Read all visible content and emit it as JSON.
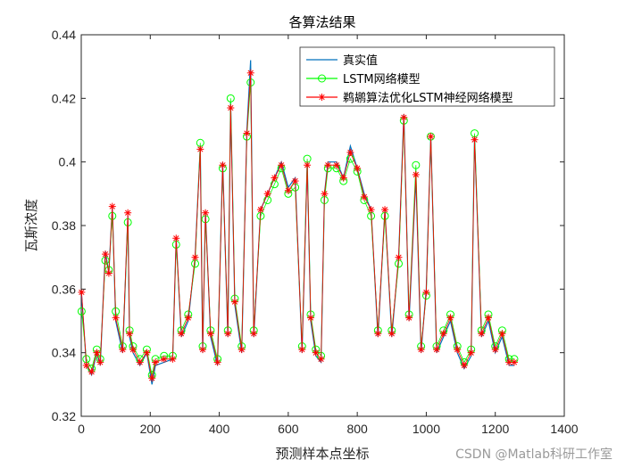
{
  "chart_data": {
    "type": "line",
    "title": "各算法结果",
    "xlabel": "预测样本点坐标",
    "ylabel": "瓦斯浓度",
    "xlim": [
      0,
      1400
    ],
    "ylim": [
      0.32,
      0.44
    ],
    "xticks": [
      "0",
      "200",
      "400",
      "600",
      "800",
      "1000",
      "1200",
      "1400"
    ],
    "yticks": [
      "0.32",
      "0.34",
      "0.36",
      "0.38",
      "0.4",
      "0.42",
      "0.44"
    ],
    "grid": false,
    "legend_position": "top-right",
    "series": [
      {
        "name": "真实值",
        "color": "#0072BD",
        "marker": "none",
        "x": [
          1,
          15,
          30,
          45,
          55,
          70,
          80,
          90,
          100,
          120,
          135,
          140,
          150,
          170,
          190,
          205,
          215,
          240,
          265,
          275,
          290,
          310,
          330,
          345,
          352,
          360,
          375,
          395,
          410,
          425,
          433,
          445,
          465,
          480,
          491,
          500,
          520,
          540,
          560,
          580,
          600,
          620,
          640,
          655,
          665,
          680,
          695,
          705,
          715,
          740,
          760,
          780,
          800,
          820,
          840,
          860,
          880,
          900,
          920,
          935,
          950,
          970,
          985,
          1000,
          1013,
          1030,
          1050,
          1070,
          1090,
          1110,
          1130,
          1140,
          1160,
          1180,
          1200,
          1220,
          1240,
          1255
        ],
        "y": [
          0.358,
          0.336,
          0.333,
          0.34,
          0.336,
          0.372,
          0.365,
          0.386,
          0.35,
          0.34,
          0.383,
          0.345,
          0.34,
          0.336,
          0.34,
          0.33,
          0.336,
          0.337,
          0.338,
          0.376,
          0.345,
          0.35,
          0.37,
          0.405,
          0.34,
          0.384,
          0.345,
          0.336,
          0.4,
          0.345,
          0.419,
          0.355,
          0.34,
          0.41,
          0.432,
          0.345,
          0.385,
          0.39,
          0.395,
          0.4,
          0.392,
          0.395,
          0.34,
          0.4,
          0.35,
          0.339,
          0.337,
          0.39,
          0.4,
          0.4,
          0.395,
          0.405,
          0.398,
          0.39,
          0.385,
          0.345,
          0.385,
          0.345,
          0.37,
          0.415,
          0.35,
          0.395,
          0.34,
          0.36,
          0.408,
          0.34,
          0.345,
          0.35,
          0.34,
          0.335,
          0.339,
          0.408,
          0.345,
          0.35,
          0.34,
          0.345,
          0.336,
          0.336
        ]
      },
      {
        "name": "LSTM网络模型",
        "color": "#00FF00",
        "marker": "circle",
        "x": [
          1,
          15,
          30,
          45,
          55,
          70,
          80,
          90,
          100,
          120,
          135,
          140,
          150,
          170,
          190,
          205,
          215,
          240,
          265,
          275,
          290,
          310,
          330,
          345,
          352,
          360,
          375,
          395,
          410,
          425,
          433,
          445,
          465,
          480,
          491,
          500,
          520,
          540,
          560,
          580,
          600,
          620,
          640,
          655,
          665,
          680,
          695,
          705,
          715,
          740,
          760,
          780,
          800,
          820,
          840,
          860,
          880,
          900,
          920,
          935,
          950,
          970,
          985,
          1000,
          1013,
          1030,
          1050,
          1070,
          1090,
          1110,
          1130,
          1140,
          1160,
          1180,
          1200,
          1220,
          1240,
          1255
        ],
        "y": [
          0.353,
          0.338,
          0.335,
          0.341,
          0.338,
          0.369,
          0.366,
          0.383,
          0.353,
          0.342,
          0.381,
          0.347,
          0.342,
          0.338,
          0.341,
          0.333,
          0.338,
          0.339,
          0.339,
          0.374,
          0.347,
          0.352,
          0.368,
          0.406,
          0.342,
          0.382,
          0.347,
          0.338,
          0.398,
          0.347,
          0.42,
          0.357,
          0.342,
          0.408,
          0.425,
          0.347,
          0.383,
          0.388,
          0.393,
          0.398,
          0.39,
          0.392,
          0.342,
          0.401,
          0.352,
          0.341,
          0.339,
          0.388,
          0.398,
          0.398,
          0.394,
          0.401,
          0.397,
          0.388,
          0.383,
          0.347,
          0.383,
          0.347,
          0.368,
          0.413,
          0.352,
          0.399,
          0.342,
          0.358,
          0.408,
          0.342,
          0.347,
          0.352,
          0.342,
          0.337,
          0.341,
          0.409,
          0.347,
          0.352,
          0.342,
          0.347,
          0.338,
          0.338
        ]
      },
      {
        "name": "鹈鹕算法优化LSTM神经网络模型",
        "color": "#FF0000",
        "marker": "asterisk",
        "x": [
          1,
          15,
          30,
          45,
          55,
          70,
          80,
          90,
          100,
          120,
          135,
          140,
          150,
          170,
          190,
          205,
          215,
          240,
          265,
          275,
          290,
          310,
          330,
          345,
          352,
          360,
          375,
          395,
          410,
          425,
          433,
          445,
          465,
          480,
          491,
          500,
          520,
          540,
          560,
          580,
          600,
          620,
          640,
          655,
          665,
          680,
          695,
          705,
          715,
          740,
          760,
          780,
          800,
          820,
          840,
          860,
          880,
          900,
          920,
          935,
          950,
          970,
          985,
          1000,
          1013,
          1030,
          1050,
          1070,
          1090,
          1110,
          1130,
          1140,
          1160,
          1180,
          1200,
          1220,
          1240,
          1255
        ],
        "y": [
          0.359,
          0.336,
          0.334,
          0.34,
          0.337,
          0.371,
          0.365,
          0.386,
          0.351,
          0.341,
          0.384,
          0.346,
          0.341,
          0.337,
          0.34,
          0.332,
          0.337,
          0.338,
          0.338,
          0.376,
          0.346,
          0.351,
          0.37,
          0.404,
          0.341,
          0.384,
          0.346,
          0.337,
          0.399,
          0.346,
          0.417,
          0.356,
          0.341,
          0.409,
          0.428,
          0.346,
          0.385,
          0.39,
          0.395,
          0.399,
          0.391,
          0.394,
          0.341,
          0.399,
          0.351,
          0.34,
          0.338,
          0.39,
          0.399,
          0.399,
          0.395,
          0.403,
          0.398,
          0.389,
          0.385,
          0.346,
          0.385,
          0.346,
          0.37,
          0.414,
          0.351,
          0.396,
          0.341,
          0.359,
          0.408,
          0.341,
          0.346,
          0.351,
          0.341,
          0.336,
          0.34,
          0.407,
          0.346,
          0.351,
          0.341,
          0.346,
          0.337,
          0.337
        ]
      }
    ]
  },
  "watermark": "CSDN @Matlab科研工作室"
}
